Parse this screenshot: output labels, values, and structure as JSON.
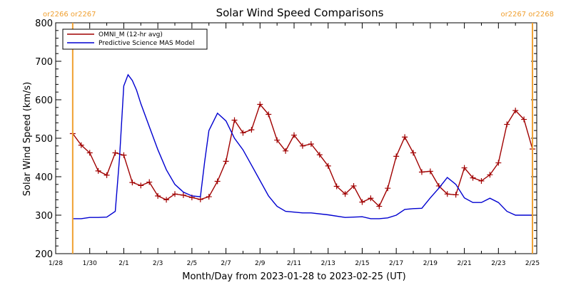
{
  "colors": {
    "omni": "#a00000",
    "mas": "#0000d0",
    "rotation_marker": "#f0a030"
  },
  "chart_data": {
    "type": "line",
    "title": "Solar Wind Speed Comparisons",
    "xlabel": "Month/Day from 2023-01-28 to 2023-02-25 (UT)",
    "ylabel": "Solar Wind Speed (km/s)",
    "xlim": [
      "2023-01-28",
      "2023-02-25T06:00"
    ],
    "ylim": [
      200,
      800
    ],
    "x_ticks": [
      "2023-01-28",
      "2023-01-30",
      "2023-02-01",
      "2023-02-03",
      "2023-02-05",
      "2023-02-07",
      "2023-02-09",
      "2023-02-11",
      "2023-02-13",
      "2023-02-15",
      "2023-02-17",
      "2023-02-19",
      "2023-02-21",
      "2023-02-23",
      "2023-02-25"
    ],
    "x_tick_labels": [
      "1/28",
      "1/30",
      "2/1",
      "2/3",
      "2/5",
      "2/7",
      "2/9",
      "2/11",
      "2/13",
      "2/15",
      "2/17",
      "2/19",
      "2/21",
      "2/23",
      "2/25"
    ],
    "y_ticks": [
      200,
      300,
      400,
      500,
      600,
      700,
      800
    ],
    "y_tick_labels": [
      "200",
      "300",
      "400",
      "500",
      "600",
      "700",
      "800"
    ],
    "legend_position": "top-left",
    "rotation_markers": [
      {
        "x": "2023-01-29T00:00",
        "label": "or2266  or2267",
        "label_side": "left"
      },
      {
        "x": "2023-02-25T00:00",
        "label": "or2267  or2268",
        "label_side": "right"
      }
    ],
    "series": [
      {
        "name": "OMNI_M (12-hr avg)",
        "marker": "+",
        "x": [
          "2023-01-29T00:00",
          "2023-01-29T12:00",
          "2023-01-30T00:00",
          "2023-01-30T12:00",
          "2023-01-31T00:00",
          "2023-01-31T12:00",
          "2023-02-01T00:00",
          "2023-02-01T12:00",
          "2023-02-02T00:00",
          "2023-02-02T12:00",
          "2023-02-03T00:00",
          "2023-02-03T12:00",
          "2023-02-04T00:00",
          "2023-02-04T12:00",
          "2023-02-05T00:00",
          "2023-02-05T12:00",
          "2023-02-06T00:00",
          "2023-02-06T12:00",
          "2023-02-07T00:00",
          "2023-02-07T12:00",
          "2023-02-08T00:00",
          "2023-02-08T12:00",
          "2023-02-09T00:00",
          "2023-02-09T12:00",
          "2023-02-10T00:00",
          "2023-02-10T12:00",
          "2023-02-11T00:00",
          "2023-02-11T12:00",
          "2023-02-12T00:00",
          "2023-02-12T12:00",
          "2023-02-13T00:00",
          "2023-02-13T12:00",
          "2023-02-14T00:00",
          "2023-02-14T12:00",
          "2023-02-15T00:00",
          "2023-02-15T12:00",
          "2023-02-16T00:00",
          "2023-02-16T12:00",
          "2023-02-17T00:00",
          "2023-02-17T12:00",
          "2023-02-18T00:00",
          "2023-02-18T12:00",
          "2023-02-19T00:00",
          "2023-02-19T12:00",
          "2023-02-20T00:00",
          "2023-02-20T12:00",
          "2023-02-21T00:00",
          "2023-02-21T12:00",
          "2023-02-22T00:00",
          "2023-02-22T12:00",
          "2023-02-23T00:00",
          "2023-02-23T12:00",
          "2023-02-24T00:00",
          "2023-02-24T12:00",
          "2023-02-25T00:00"
        ],
        "y": [
          512,
          482,
          462,
          415,
          404,
          462,
          456,
          385,
          377,
          386,
          350,
          340,
          355,
          352,
          346,
          341,
          348,
          388,
          440,
          547,
          514,
          522,
          588,
          562,
          495,
          467,
          508,
          480,
          485,
          457,
          428,
          375,
          355,
          376,
          334,
          344,
          323,
          370,
          453,
          503,
          462,
          412,
          414,
          376,
          355,
          353,
          423,
          397,
          389,
          405,
          436,
          536,
          572,
          549,
          472
        ]
      },
      {
        "name": "Predictive Science MAS Model",
        "marker": "",
        "x": [
          "2023-01-29T00:00",
          "2023-01-29T12:00",
          "2023-01-30T00:00",
          "2023-01-30T12:00",
          "2023-01-31T00:00",
          "2023-01-31T12:00",
          "2023-01-31T18:00",
          "2023-02-01T00:00",
          "2023-02-01T06:00",
          "2023-02-01T12:00",
          "2023-02-01T18:00",
          "2023-02-02T00:00",
          "2023-02-02T12:00",
          "2023-02-03T00:00",
          "2023-02-03T12:00",
          "2023-02-04T00:00",
          "2023-02-04T12:00",
          "2023-02-05T00:00",
          "2023-02-05T12:00",
          "2023-02-05T18:00",
          "2023-02-06T00:00",
          "2023-02-06T12:00",
          "2023-02-07T00:00",
          "2023-02-07T12:00",
          "2023-02-08T00:00",
          "2023-02-08T12:00",
          "2023-02-09T00:00",
          "2023-02-09T12:00",
          "2023-02-10T00:00",
          "2023-02-10T12:00",
          "2023-02-11T00:00",
          "2023-02-11T12:00",
          "2023-02-12T00:00",
          "2023-02-13T00:00",
          "2023-02-14T00:00",
          "2023-02-15T00:00",
          "2023-02-15T12:00",
          "2023-02-16T00:00",
          "2023-02-16T12:00",
          "2023-02-17T00:00",
          "2023-02-17T12:00",
          "2023-02-18T00:00",
          "2023-02-18T12:00",
          "2023-02-19T00:00",
          "2023-02-19T12:00",
          "2023-02-20T00:00",
          "2023-02-20T12:00",
          "2023-02-21T00:00",
          "2023-02-21T12:00",
          "2023-02-22T00:00",
          "2023-02-22T12:00",
          "2023-02-23T00:00",
          "2023-02-23T12:00",
          "2023-02-24T00:00",
          "2023-02-24T12:00",
          "2023-02-25T00:00"
        ],
        "y": [
          291,
          291,
          294,
          294,
          295,
          310,
          450,
          636,
          665,
          650,
          625,
          590,
          530,
          470,
          418,
          380,
          360,
          350,
          348,
          440,
          520,
          565,
          545,
          500,
          470,
          430,
          390,
          350,
          323,
          310,
          308,
          306,
          306,
          301,
          294,
          296,
          291,
          291,
          293,
          300,
          315,
          317,
          318,
          345,
          370,
          398,
          380,
          345,
          333,
          333,
          344,
          333,
          310,
          300,
          300,
          300
        ]
      }
    ]
  }
}
